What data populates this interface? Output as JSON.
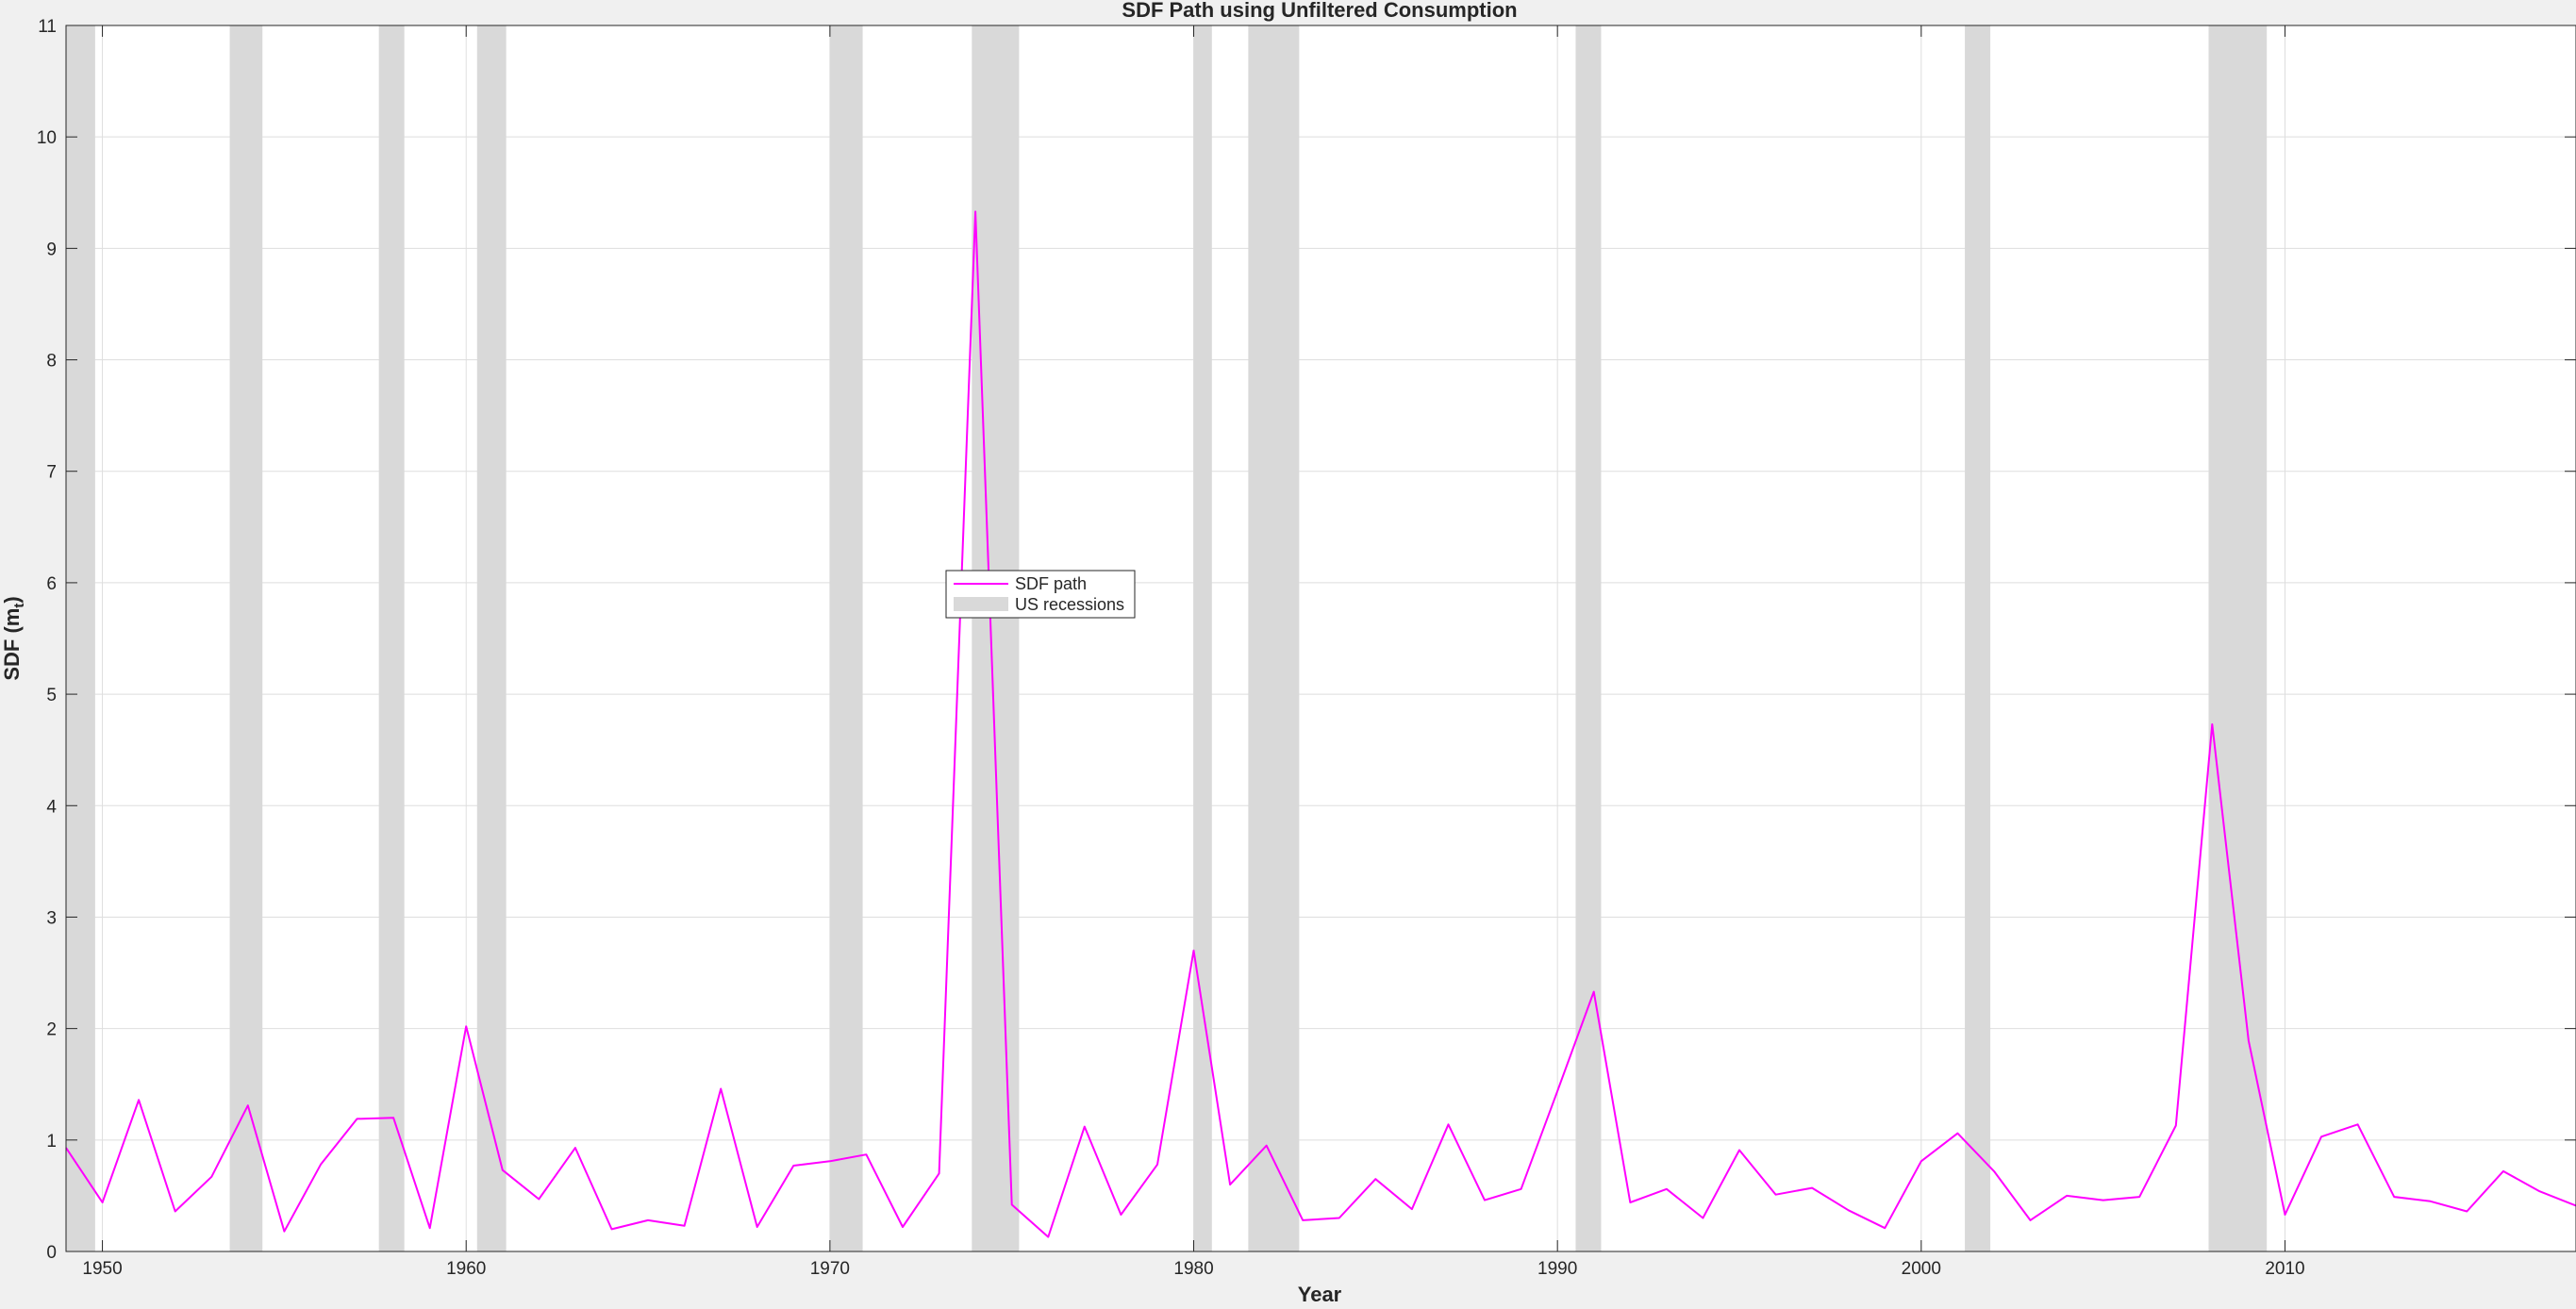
{
  "chart_data": {
    "type": "line",
    "title": "SDF Path using Unfiltered Consumption",
    "xlabel": "Year",
    "ylabel": "SDF  (m",
    "ylabel_subscript": "t",
    "ylabel_suffix": ")",
    "xlim": [
      1949,
      2018
    ],
    "ylim": [
      0,
      11
    ],
    "xticks": [
      1950,
      1960,
      1970,
      1980,
      1990,
      2000,
      2010
    ],
    "yticks": [
      0,
      1,
      2,
      3,
      4,
      5,
      6,
      7,
      8,
      9,
      10,
      11
    ],
    "grid": true,
    "legend_position": "center",
    "legend": [
      {
        "label": "SDF path",
        "kind": "line"
      },
      {
        "label": "US recessions",
        "kind": "patch"
      }
    ],
    "series": [
      {
        "name": "SDF path",
        "color": "#ff00ff",
        "x": [
          1949,
          1950,
          1951,
          1952,
          1953,
          1954,
          1955,
          1956,
          1957,
          1958,
          1959,
          1960,
          1961,
          1962,
          1963,
          1964,
          1965,
          1966,
          1967,
          1968,
          1969,
          1970,
          1971,
          1972,
          1973,
          1974,
          1975,
          1976,
          1977,
          1978,
          1979,
          1980,
          1981,
          1982,
          1983,
          1984,
          1985,
          1986,
          1987,
          1988,
          1989,
          1990,
          1991,
          1992,
          1993,
          1994,
          1995,
          1996,
          1997,
          1998,
          1999,
          2000,
          2001,
          2002,
          2003,
          2004,
          2005,
          2006,
          2007,
          2008,
          2009,
          2010,
          2011,
          2012,
          2013,
          2014,
          2015,
          2016,
          2017,
          2018
        ],
        "y": [
          0.93,
          0.44,
          1.36,
          0.36,
          0.67,
          1.31,
          0.18,
          0.78,
          1.19,
          1.2,
          0.21,
          2.02,
          0.73,
          0.47,
          0.93,
          0.2,
          0.28,
          0.23,
          1.46,
          0.22,
          0.77,
          0.81,
          0.87,
          0.22,
          0.7,
          9.33,
          0.42,
          0.13,
          1.12,
          0.33,
          0.78,
          2.7,
          0.6,
          0.95,
          0.28,
          0.3,
          0.65,
          0.38,
          1.14,
          0.46,
          0.56,
          1.44,
          2.33,
          0.44,
          0.56,
          0.3,
          0.91,
          0.51,
          0.57,
          0.37,
          0.21,
          0.81,
          1.06,
          0.72,
          0.28,
          0.5,
          0.46,
          0.49,
          1.13,
          4.73,
          1.89,
          0.33,
          1.03,
          1.14,
          0.49,
          0.45,
          0.36,
          0.72,
          0.54,
          0.41
        ]
      }
    ],
    "recessions": {
      "name": "US recessions",
      "color": "#d9d9d9",
      "periods": [
        [
          1948.9,
          1949.8
        ],
        [
          1953.5,
          1954.4
        ],
        [
          1957.6,
          1958.3
        ],
        [
          1960.3,
          1961.1
        ],
        [
          1970.0,
          1970.9
        ],
        [
          1973.9,
          1975.2
        ],
        [
          1980.0,
          1980.5
        ],
        [
          1981.5,
          1982.9
        ],
        [
          1990.5,
          1991.2
        ],
        [
          2001.2,
          2001.9
        ],
        [
          2007.9,
          2009.5
        ]
      ]
    }
  }
}
